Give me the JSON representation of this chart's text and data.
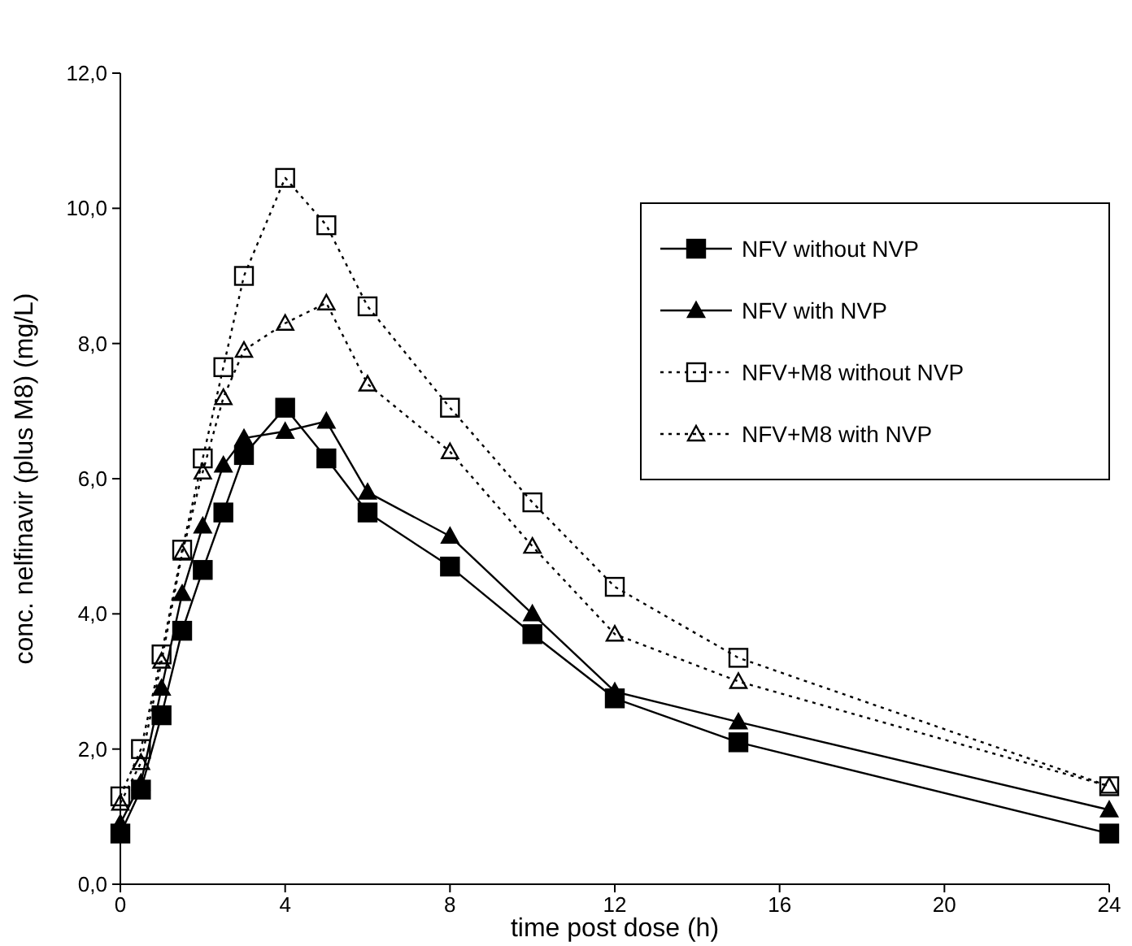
{
  "chart_data": {
    "type": "line",
    "xlabel": "time post dose (h)",
    "ylabel": "conc. nelfinavir (plus M8) (mg/L)",
    "x": [
      0,
      0.5,
      1,
      1.5,
      2,
      2.5,
      3,
      4,
      5,
      6,
      8,
      10,
      12,
      15,
      24
    ],
    "xlim": [
      0,
      24
    ],
    "xticks": [
      0,
      4,
      8,
      12,
      16,
      20,
      24
    ],
    "ylim": [
      0,
      12
    ],
    "yticks": [
      {
        "value": 0,
        "label": "0,0"
      },
      {
        "value": 2,
        "label": "2,0"
      },
      {
        "value": 4,
        "label": "4,0"
      },
      {
        "value": 6,
        "label": "6,0"
      },
      {
        "value": 8,
        "label": "8,0"
      },
      {
        "value": 10,
        "label": "10,0"
      },
      {
        "value": 12,
        "label": "12,0"
      }
    ],
    "grid": false,
    "legend": "top right",
    "series": [
      {
        "name": "NFV without NVP",
        "color": "#000000",
        "marker": "square",
        "line_style": "solid",
        "values": [
          0.75,
          1.4,
          2.5,
          3.75,
          4.65,
          5.5,
          6.35,
          7.05,
          6.3,
          5.5,
          4.7,
          3.7,
          2.75,
          2.1,
          0.75
        ]
      },
      {
        "name": "NFV with NVP",
        "color": "#000000",
        "marker": "triangle",
        "line_style": "solid",
        "values": [
          0.9,
          1.5,
          2.9,
          4.3,
          5.3,
          6.2,
          6.6,
          6.7,
          6.85,
          5.8,
          5.15,
          4.0,
          2.85,
          2.4,
          1.1
        ]
      },
      {
        "name": "NFV+M8 without NVP",
        "color": "#000000",
        "marker": "square",
        "line_style": "dotted",
        "values": [
          1.3,
          2.0,
          3.4,
          4.95,
          6.3,
          7.65,
          9.0,
          10.45,
          9.75,
          8.55,
          7.05,
          5.65,
          4.4,
          3.35,
          1.45
        ]
      },
      {
        "name": "NFV+M8 with NVP",
        "color": "#000000",
        "marker": "triangle",
        "line_style": "dotted",
        "values": [
          1.2,
          1.8,
          3.3,
          4.9,
          6.1,
          7.2,
          7.9,
          8.3,
          8.6,
          7.4,
          6.4,
          5.0,
          3.7,
          3.0,
          1.45
        ]
      }
    ]
  }
}
